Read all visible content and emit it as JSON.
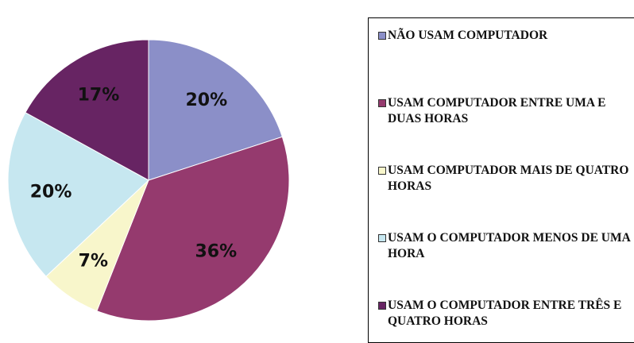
{
  "chart_data": {
    "type": "pie",
    "categories": [
      "NÃO USAM COMPUTADOR",
      "USAM COMPUTADOR ENTRE UMA E DUAS HORAS",
      "USAM COMPUTADOR MAIS DE QUATRO HORAS",
      "USAM O COMPUTADOR MENOS DE UMA HORA",
      "USAM O COMPUTADOR ENTRE TRÊS E QUATRO HORAS"
    ],
    "values": [
      20,
      36,
      7,
      20,
      17
    ],
    "value_labels": [
      "20%",
      "36%",
      "7%",
      "20%",
      "17%"
    ],
    "colors": [
      "#8b8fc8",
      "#953a6e",
      "#f8f6cb",
      "#c6e7f0",
      "#672463"
    ],
    "legend": "right"
  }
}
